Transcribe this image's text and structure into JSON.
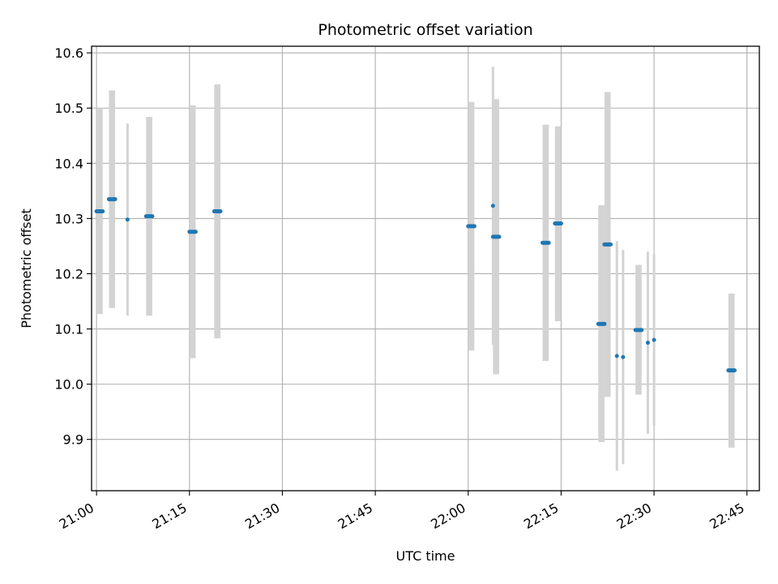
{
  "chart_data": {
    "type": "scatter",
    "title": "Photometric offset variation",
    "xlabel": "UTC time",
    "ylabel": "Photometric offset",
    "x_axis": "time",
    "xlim": [
      "20:59:12",
      "22:47:00"
    ],
    "ylim": [
      9.807,
      10.612
    ],
    "grid": true,
    "x_ticks": [
      "21:00",
      "21:15",
      "21:30",
      "21:45",
      "22:00",
      "22:15",
      "22:30",
      "22:45"
    ],
    "y_ticks": [
      "9.9",
      "10.0",
      "10.1",
      "10.2",
      "10.3",
      "10.4",
      "10.5",
      "10.6"
    ],
    "colors": {
      "points": "#1f77b4",
      "error_bars": "#d3d3d3",
      "grid": "#b0b0b0",
      "axes": "#000000"
    },
    "points": [
      {
        "t": "21:00",
        "y": 10.313,
        "ylo": 10.127,
        "yhi": 10.5,
        "t_end": "21:01"
      },
      {
        "t": "21:02",
        "y": 10.335,
        "ylo": 10.138,
        "yhi": 10.532,
        "t_end": "21:03"
      },
      {
        "t": "21:05",
        "y": 10.298,
        "ylo": 10.124,
        "yhi": 10.472,
        "t_end": "21:05"
      },
      {
        "t": "21:08",
        "y": 10.304,
        "ylo": 10.124,
        "yhi": 10.484,
        "t_end": "21:09"
      },
      {
        "t": "21:15",
        "y": 10.276,
        "ylo": 10.047,
        "yhi": 10.505,
        "t_end": "21:16"
      },
      {
        "t": "21:19",
        "y": 10.313,
        "ylo": 10.083,
        "yhi": 10.543,
        "t_end": "21:20"
      },
      {
        "t": "22:00",
        "y": 10.286,
        "ylo": 10.061,
        "yhi": 10.511,
        "t_end": "22:01"
      },
      {
        "t": "22:04",
        "y": 10.323,
        "ylo": 10.071,
        "yhi": 10.575,
        "t_end": "22:04"
      },
      {
        "t": "22:04",
        "y": 10.267,
        "ylo": 10.018,
        "yhi": 10.516,
        "t_end": "22:05"
      },
      {
        "t": "22:12",
        "y": 10.256,
        "ylo": 10.042,
        "yhi": 10.47,
        "t_end": "22:13"
      },
      {
        "t": "22:14",
        "y": 10.291,
        "ylo": 10.114,
        "yhi": 10.467,
        "t_end": "22:15"
      },
      {
        "t": "22:21",
        "y": 10.109,
        "ylo": 9.895,
        "yhi": 10.324,
        "t_end": "22:22"
      },
      {
        "t": "22:22",
        "y": 10.253,
        "ylo": 9.977,
        "yhi": 10.529,
        "t_end": "22:23"
      },
      {
        "t": "22:24",
        "y": 10.051,
        "ylo": 9.843,
        "yhi": 10.259,
        "t_end": "22:24"
      },
      {
        "t": "22:25",
        "y": 10.049,
        "ylo": 9.855,
        "yhi": 10.243,
        "t_end": "22:25"
      },
      {
        "t": "22:27",
        "y": 10.098,
        "ylo": 9.981,
        "yhi": 10.216,
        "t_end": "22:28"
      },
      {
        "t": "22:29",
        "y": 10.075,
        "ylo": 9.91,
        "yhi": 10.24,
        "t_end": "22:29"
      },
      {
        "t": "22:30",
        "y": 10.08,
        "ylo": 9.924,
        "yhi": 10.236,
        "t_end": "22:30"
      },
      {
        "t": "22:42",
        "y": 10.025,
        "ylo": 9.885,
        "yhi": 10.164,
        "t_end": "22:43"
      }
    ]
  }
}
